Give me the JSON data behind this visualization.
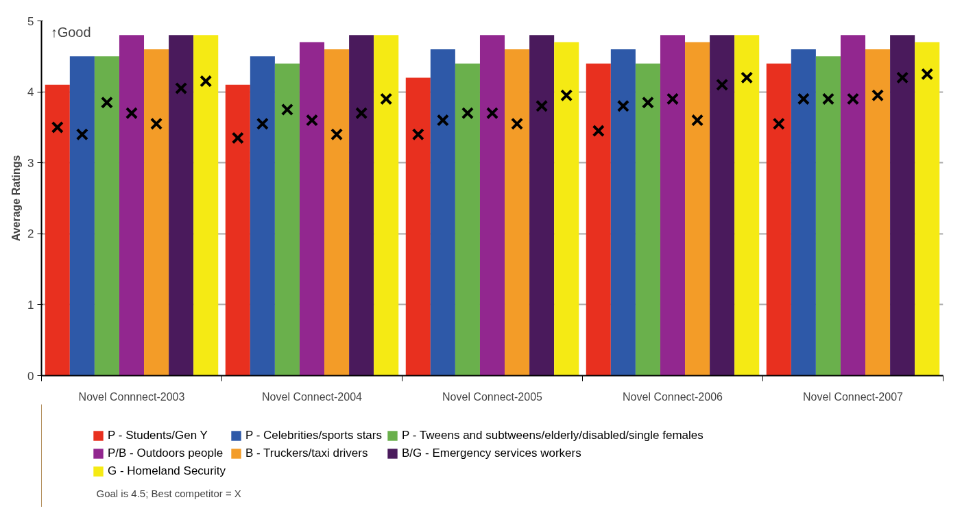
{
  "chart_data": {
    "type": "bar",
    "ylabel": "Average Ratings",
    "categories": [
      "Novel Connnect-2003",
      "Novel Connect-2004",
      "Novel Connect-2005",
      "Novel Connect-2006",
      "Novel Connect-2007"
    ],
    "series": [
      {
        "name": "P - Students/Gen Y",
        "color": "#e8301f",
        "values": [
          4.1,
          4.1,
          4.2,
          4.4,
          4.4
        ]
      },
      {
        "name": "P - Celebrities/sports stars",
        "color": "#2e59a8",
        "values": [
          4.5,
          4.5,
          4.6,
          4.6,
          4.6
        ]
      },
      {
        "name": "P - Tweens and subtweens/elderly/disabled/single females",
        "color": "#6ab04c",
        "values": [
          4.5,
          4.4,
          4.4,
          4.4,
          4.5
        ]
      },
      {
        "name": "P/B - Outdoors people",
        "color": "#92278f",
        "values": [
          4.8,
          4.7,
          4.8,
          4.8,
          4.8
        ]
      },
      {
        "name": "B - Truckers/taxi drivers",
        "color": "#f39c28",
        "values": [
          4.6,
          4.6,
          4.6,
          4.7,
          4.6
        ]
      },
      {
        "name": "B/G - Emergency services workers",
        "color": "#4a1a5c",
        "values": [
          4.8,
          4.8,
          4.8,
          4.8,
          4.8
        ]
      },
      {
        "name": "G - Homeland Security",
        "color": "#f5ea14",
        "values": [
          4.8,
          4.8,
          4.7,
          4.8,
          4.7
        ]
      },
      {
        "type": "scatter",
        "marker": "cross",
        "color": "#000000",
        "values": [
          3.5,
          3.35,
          3.4,
          3.45,
          3.55
        ]
      },
      {
        "type": "scatter",
        "marker": "cross",
        "color": "#000000",
        "values": [
          3.4,
          3.55,
          3.6,
          3.8,
          3.9
        ]
      },
      {
        "type": "scatter",
        "marker": "cross",
        "color": "#000000",
        "values": [
          3.85,
          3.75,
          3.7,
          3.85,
          3.9
        ]
      },
      {
        "type": "scatter",
        "marker": "cross",
        "color": "#000000",
        "values": [
          3.7,
          3.6,
          3.7,
          3.9,
          3.9
        ]
      },
      {
        "type": "scatter",
        "marker": "cross",
        "color": "#000000",
        "values": [
          3.55,
          3.4,
          3.55,
          3.6,
          3.95
        ]
      },
      {
        "type": "scatter",
        "marker": "cross",
        "color": "#000000",
        "values": [
          4.05,
          3.7,
          3.8,
          4.1,
          4.2
        ]
      },
      {
        "type": "scatter",
        "marker": "cross",
        "color": "#000000",
        "values": [
          4.15,
          3.9,
          3.95,
          4.2,
          4.25
        ]
      }
    ],
    "ylim": [
      0,
      5
    ],
    "yticks": [
      0,
      1,
      2,
      3,
      4,
      5
    ],
    "grid": "y",
    "legend": "bottom",
    "annotations": [
      "↑Good",
      "Goal is 4.5; Best competitor = X"
    ]
  }
}
